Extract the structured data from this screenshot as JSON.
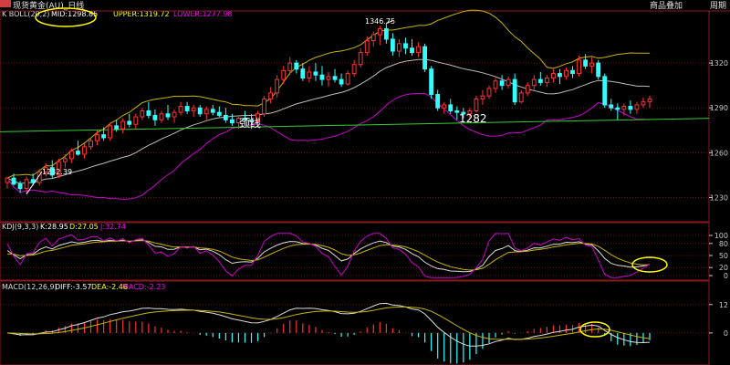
{
  "window": {
    "title": "现货黄金(AU)_日线",
    "buttons": [
      "商品叠加",
      "周期"
    ],
    "colors": {
      "background": "#000000",
      "grid": "#7a1a1a",
      "up": "#ff3333",
      "down": "#33ffff",
      "axis": "#c8c8c8"
    }
  },
  "chart_data": [
    {
      "type": "candlestick",
      "panel": "main",
      "indicator_title": "K  BOLL(20,2)",
      "indicator_values": [
        {
          "label": "MID:1298.85",
          "color": "#ffffff"
        },
        {
          "label": "UPPER:1319.72",
          "color": "#ffff00"
        },
        {
          "label": "LOWER:1277.98",
          "color": "#ff00ff"
        }
      ],
      "y_ticks": [
        "1320",
        "1290",
        "1260",
        "1230"
      ],
      "ylim": [
        1215,
        1350
      ],
      "annotations": [
        {
          "text": "1346.75",
          "price": 1346.75,
          "index": 59
        },
        {
          "text": "1232.39",
          "price": 1232.39,
          "index": 3
        },
        {
          "text": "颈线"
        },
        {
          "text": "1282"
        }
      ],
      "neckline": {
        "color": "#33cc33",
        "from": 1274,
        "to": 1283
      },
      "ohlc": [
        [
          1240,
          1244,
          1236,
          1243
        ],
        [
          1243,
          1246,
          1238,
          1239
        ],
        [
          1239,
          1241,
          1233,
          1236
        ],
        [
          1236,
          1244,
          1232.39,
          1242
        ],
        [
          1242,
          1246,
          1238,
          1240
        ],
        [
          1240,
          1249,
          1238,
          1247
        ],
        [
          1247,
          1253,
          1244,
          1250
        ],
        [
          1250,
          1255,
          1243,
          1245
        ],
        [
          1245,
          1256,
          1243,
          1254
        ],
        [
          1254,
          1259,
          1250,
          1256
        ],
        [
          1256,
          1263,
          1253,
          1261
        ],
        [
          1261,
          1268,
          1258,
          1259
        ],
        [
          1259,
          1266,
          1256,
          1264
        ],
        [
          1264,
          1270,
          1262,
          1268
        ],
        [
          1268,
          1275,
          1265,
          1272
        ],
        [
          1272,
          1277,
          1268,
          1270
        ],
        [
          1270,
          1280,
          1268,
          1278
        ],
        [
          1278,
          1282,
          1274,
          1276
        ],
        [
          1276,
          1283,
          1273,
          1281
        ],
        [
          1281,
          1286,
          1277,
          1279
        ],
        [
          1279,
          1286,
          1276,
          1284
        ],
        [
          1284,
          1290,
          1282,
          1288
        ],
        [
          1288,
          1294,
          1283,
          1285
        ],
        [
          1285,
          1289,
          1278,
          1282
        ],
        [
          1282,
          1288,
          1280,
          1286
        ],
        [
          1286,
          1292,
          1282,
          1284
        ],
        [
          1284,
          1289,
          1280,
          1287
        ],
        [
          1287,
          1294,
          1285,
          1291
        ],
        [
          1291,
          1294,
          1286,
          1288
        ],
        [
          1288,
          1292,
          1284,
          1290
        ],
        [
          1290,
          1292,
          1284,
          1286
        ],
        [
          1286,
          1291,
          1282,
          1289
        ],
        [
          1289,
          1292,
          1285,
          1287
        ],
        [
          1287,
          1291,
          1284,
          1285
        ],
        [
          1285,
          1290,
          1280,
          1282
        ],
        [
          1282,
          1286,
          1278,
          1280
        ],
        [
          1280,
          1284,
          1276,
          1283
        ],
        [
          1283,
          1288,
          1279,
          1282
        ],
        [
          1282,
          1286,
          1276,
          1281
        ],
        [
          1281,
          1288,
          1280,
          1286
        ],
        [
          1286,
          1298,
          1284,
          1296
        ],
        [
          1296,
          1304,
          1293,
          1300
        ],
        [
          1300,
          1312,
          1297,
          1309
        ],
        [
          1309,
          1318,
          1306,
          1315
        ],
        [
          1315,
          1324,
          1312,
          1320
        ],
        [
          1320,
          1322,
          1313,
          1316
        ],
        [
          1316,
          1320,
          1308,
          1310
        ],
        [
          1310,
          1318,
          1307,
          1314
        ],
        [
          1314,
          1320,
          1308,
          1312
        ],
        [
          1312,
          1318,
          1305,
          1309
        ],
        [
          1309,
          1314,
          1304,
          1311
        ],
        [
          1311,
          1316,
          1307,
          1309
        ],
        [
          1309,
          1313,
          1304,
          1306
        ],
        [
          1306,
          1315,
          1305,
          1313
        ],
        [
          1313,
          1322,
          1311,
          1319
        ],
        [
          1319,
          1330,
          1317,
          1327
        ],
        [
          1327,
          1338,
          1325,
          1335
        ],
        [
          1335,
          1341,
          1331,
          1339
        ],
        [
          1339,
          1345,
          1332,
          1343
        ],
        [
          1343,
          1346.75,
          1333,
          1336
        ],
        [
          1336,
          1340,
          1325,
          1328
        ],
        [
          1328,
          1336,
          1324,
          1333
        ],
        [
          1333,
          1337,
          1326,
          1330
        ],
        [
          1330,
          1336,
          1325,
          1327
        ],
        [
          1327,
          1334,
          1324,
          1331
        ],
        [
          1331,
          1333,
          1314,
          1316
        ],
        [
          1316,
          1318,
          1296,
          1299
        ],
        [
          1299,
          1302,
          1288,
          1290
        ],
        [
          1290,
          1294,
          1286,
          1292
        ],
        [
          1292,
          1296,
          1286,
          1288
        ],
        [
          1288,
          1291,
          1282,
          1287
        ],
        [
          1287,
          1290,
          1283,
          1286
        ],
        [
          1286,
          1290,
          1283,
          1288
        ],
        [
          1288,
          1298,
          1287,
          1296
        ],
        [
          1296,
          1302,
          1292,
          1298
        ],
        [
          1298,
          1305,
          1296,
          1303
        ],
        [
          1303,
          1310,
          1300,
          1308
        ],
        [
          1308,
          1312,
          1302,
          1305
        ],
        [
          1305,
          1311,
          1303,
          1309
        ],
        [
          1309,
          1313,
          1292,
          1294
        ],
        [
          1294,
          1302,
          1293,
          1300
        ],
        [
          1300,
          1307,
          1298,
          1305
        ],
        [
          1305,
          1312,
          1302,
          1309
        ],
        [
          1309,
          1314,
          1305,
          1307
        ],
        [
          1307,
          1312,
          1304,
          1310
        ],
        [
          1310,
          1316,
          1307,
          1313
        ],
        [
          1313,
          1316,
          1306,
          1311
        ],
        [
          1311,
          1317,
          1309,
          1315
        ],
        [
          1315,
          1318,
          1310,
          1313
        ],
        [
          1313,
          1325,
          1311,
          1322
        ],
        [
          1322,
          1326,
          1316,
          1318
        ],
        [
          1318,
          1324,
          1313,
          1320
        ],
        [
          1320,
          1322,
          1309,
          1311
        ],
        [
          1311,
          1313,
          1290,
          1292
        ],
        [
          1292,
          1296,
          1288,
          1290
        ],
        [
          1290,
          1293,
          1282,
          1289
        ],
        [
          1289,
          1293,
          1285,
          1291
        ],
        [
          1291,
          1295,
          1286,
          1289
        ],
        [
          1289,
          1294,
          1286,
          1292
        ],
        [
          1292,
          1297,
          1290,
          1294
        ],
        [
          1294,
          1298,
          1290,
          1296
        ]
      ]
    },
    {
      "type": "line",
      "panel": "kdj",
      "indicator_title": "KDJ(9,3,3)",
      "indicator_values": [
        {
          "label": "K:28.95",
          "color": "#ffffff"
        },
        {
          "label": "D:27.05",
          "color": "#ffff00"
        },
        {
          "label": "J:32.74",
          "color": "#ff00ff"
        }
      ],
      "y_ticks": [
        "100",
        "80",
        "50",
        "20",
        "0"
      ],
      "ylim": [
        0,
        100
      ]
    },
    {
      "type": "bar",
      "panel": "macd",
      "indicator_title": "MACD(12,26,9)",
      "indicator_values": [
        {
          "label": "DIFF:-3.57",
          "color": "#ffffff"
        },
        {
          "label": "DEA:-2.46",
          "color": "#ffff00"
        },
        {
          "label": "MACD:-2.23",
          "color": "#ff00ff"
        }
      ],
      "y_ticks": [
        "12",
        "0"
      ],
      "ylim": [
        -12,
        15
      ]
    }
  ]
}
